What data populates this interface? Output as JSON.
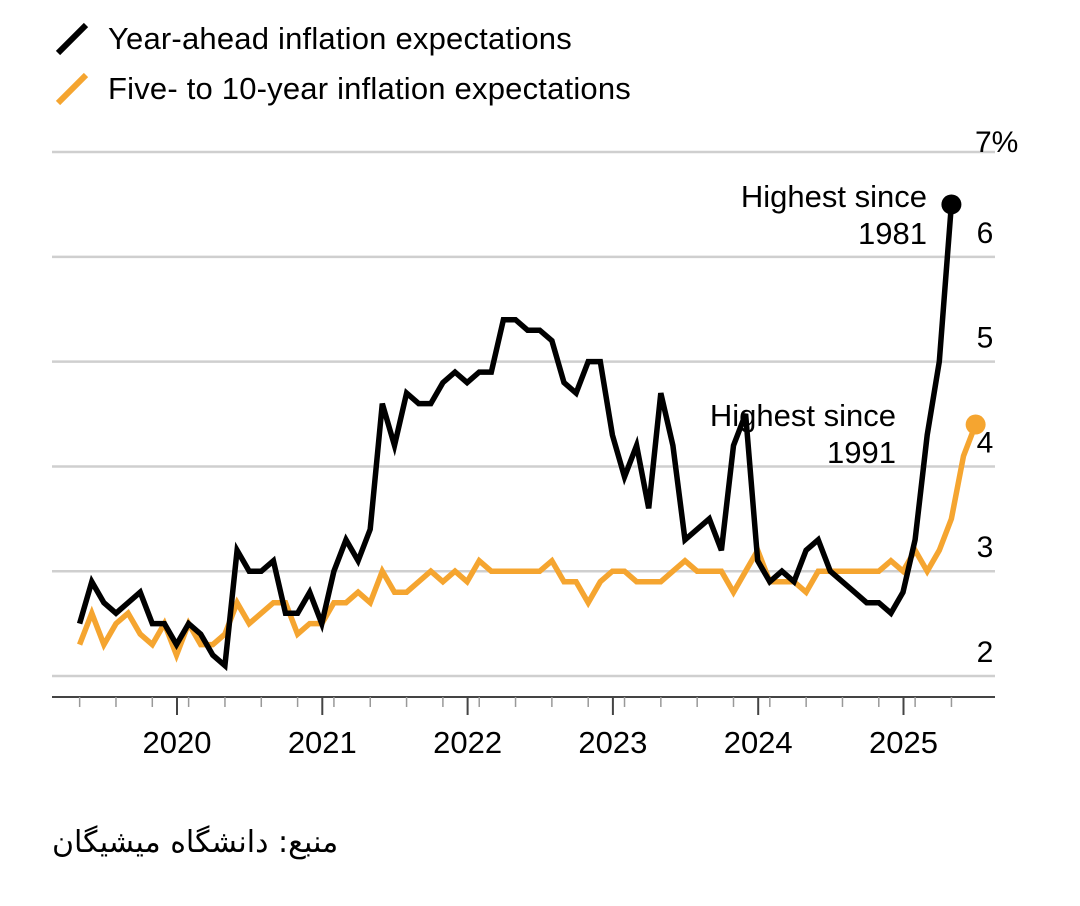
{
  "legend": [
    {
      "label": "Year-ahead inflation expectations",
      "color": "#000000"
    },
    {
      "label": "Five- to 10-year inflation expectations",
      "color": "#F5A530"
    }
  ],
  "source": "منبع: دانشگاه میشیگان",
  "chart_data": {
    "type": "line",
    "title": "",
    "xlabel": "",
    "ylabel": "",
    "y_unit_label": "7%",
    "ylim": [
      1.8,
      7
    ],
    "yticks": [
      2,
      3,
      4,
      5,
      6,
      7
    ],
    "ytick_labels": [
      "2",
      "3",
      "4",
      "5",
      "6",
      "7%"
    ],
    "xticks": [
      2020,
      2021,
      2022,
      2023,
      2024,
      2025
    ],
    "xtick_labels": [
      "2020",
      "2021",
      "2022",
      "2023",
      "2024",
      "2025"
    ],
    "grid": true,
    "series": [
      {
        "name": "Year-ahead inflation expectations",
        "color": "#000000",
        "start": 2019.33,
        "step": 0.08333,
        "values": [
          2.5,
          2.9,
          2.7,
          2.6,
          2.7,
          2.8,
          2.5,
          2.5,
          2.3,
          2.5,
          2.4,
          2.2,
          2.1,
          3.2,
          3.0,
          3.0,
          3.1,
          2.6,
          2.6,
          2.8,
          2.5,
          3.0,
          3.3,
          3.1,
          3.4,
          4.6,
          4.2,
          4.7,
          4.6,
          4.6,
          4.8,
          4.9,
          4.8,
          4.9,
          4.9,
          5.4,
          5.4,
          5.3,
          5.3,
          5.2,
          4.8,
          4.7,
          5.0,
          5.0,
          4.3,
          3.9,
          4.2,
          3.6,
          4.7,
          4.2,
          3.3,
          3.4,
          3.5,
          3.2,
          4.2,
          4.5,
          3.1,
          2.9,
          3.0,
          2.9,
          3.2,
          3.3,
          3.0,
          2.9,
          2.8,
          2.7,
          2.7,
          2.6,
          2.8,
          3.3,
          4.3,
          5.0,
          6.5
        ]
      },
      {
        "name": "Five- to 10-year inflation expectations",
        "color": "#F5A530",
        "start": 2019.33,
        "step": 0.08333,
        "values": [
          2.3,
          2.6,
          2.3,
          2.5,
          2.6,
          2.4,
          2.3,
          2.5,
          2.2,
          2.5,
          2.3,
          2.3,
          2.4,
          2.7,
          2.5,
          2.6,
          2.7,
          2.7,
          2.4,
          2.5,
          2.5,
          2.7,
          2.7,
          2.8,
          2.7,
          3.0,
          2.8,
          2.8,
          2.9,
          3.0,
          2.9,
          3.0,
          2.9,
          3.1,
          3.0,
          3.0,
          3.0,
          3.0,
          3.0,
          3.1,
          2.9,
          2.9,
          2.7,
          2.9,
          3.0,
          3.0,
          2.9,
          2.9,
          2.9,
          3.0,
          3.1,
          3.0,
          3.0,
          3.0,
          2.8,
          3.0,
          3.2,
          2.9,
          2.9,
          2.9,
          2.8,
          3.0,
          3.0,
          3.0,
          3.0,
          3.0,
          3.0,
          3.1,
          3.0,
          3.2,
          3.0,
          3.2,
          3.5,
          4.1,
          4.4
        ]
      }
    ],
    "end_markers": [
      6.5,
      4.4
    ],
    "annotations": [
      {
        "lines": [
          "Highest since",
          "1981"
        ],
        "series": 0
      },
      {
        "lines": [
          "Highest since",
          "1991"
        ],
        "series": 1
      }
    ]
  }
}
